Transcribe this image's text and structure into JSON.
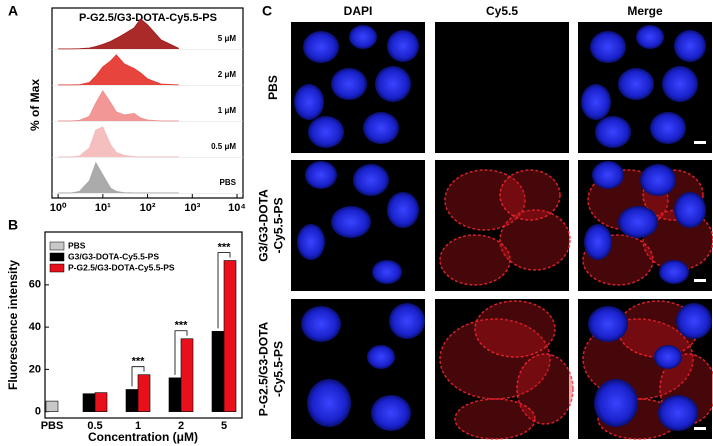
{
  "panel_labels": [
    "A",
    "B",
    "C"
  ],
  "chart_data": [
    {
      "type": "ridgeline",
      "title": "P-G2.5/G3-DOTA-Cy5.5-PS",
      "ylabel": "% of Max",
      "log_x": true,
      "xlim": [
        0.73,
        13600
      ],
      "xticks": [
        {
          "value": 1,
          "label": "10⁰"
        },
        {
          "value": 10,
          "label": "10¹"
        },
        {
          "value": 100,
          "label": "10²"
        },
        {
          "value": 1000,
          "label": "10³"
        },
        {
          "value": 10000,
          "label": "10⁴"
        }
      ],
      "ylim": [
        0,
        100
      ],
      "x": [
        1,
        2,
        3,
        5,
        7,
        10,
        15,
        20,
        30,
        50,
        70,
        100,
        200,
        500
      ],
      "series": [
        {
          "name": "PBS",
          "color": "#a6a6a6",
          "values": [
            0,
            0,
            5,
            40,
            100,
            60,
            15,
            5,
            1,
            0,
            0,
            0,
            0,
            0
          ]
        },
        {
          "name": "0.5 μM",
          "color": "#f6bcbc",
          "values": [
            0,
            0,
            3,
            30,
            90,
            100,
            40,
            15,
            5,
            1,
            0,
            0,
            0,
            0
          ]
        },
        {
          "name": "1 μM",
          "color": "#f29090",
          "values": [
            0,
            0,
            2,
            15,
            60,
            100,
            60,
            30,
            20,
            25,
            10,
            3,
            0,
            0
          ]
        },
        {
          "name": "2 μM",
          "color": "#e53a33",
          "values": [
            0,
            0,
            1,
            8,
            30,
            60,
            80,
            100,
            70,
            55,
            40,
            20,
            3,
            0
          ]
        },
        {
          "name": "5 μM",
          "color": "#a51d1d",
          "values": [
            0,
            0,
            1,
            3,
            8,
            15,
            25,
            35,
            50,
            70,
            100,
            80,
            30,
            2
          ]
        }
      ]
    },
    {
      "type": "bar",
      "xlabel": "Concentration (μM)",
      "ylabel": "Fluorescence intensity",
      "categories": [
        "PBS",
        "0.5",
        "1",
        "2",
        "5"
      ],
      "ylim": [
        -3,
        85
      ],
      "yticks": [
        0,
        20,
        40,
        60
      ],
      "legend": "upper-left",
      "series": [
        {
          "name": "PBS",
          "color": "#c8c8c8",
          "values": [
            5,
            null,
            null,
            null,
            null
          ]
        },
        {
          "name": "G3/G3-DOTA-Cy5.5-PS",
          "color": "#000000",
          "values": [
            null,
            8.5,
            10.5,
            16,
            38
          ]
        },
        {
          "name": "P-G2.5/G3-DOTA-Cy5.5-PS",
          "color": "#e8101a",
          "values": [
            null,
            9,
            17.5,
            34.5,
            71.5
          ]
        }
      ],
      "annotations": [
        "***",
        "***",
        "***"
      ]
    }
  ],
  "microscopy": {
    "columns": [
      "DAPI",
      "Cy5.5",
      "Merge"
    ],
    "rows": [
      [
        "PBS"
      ],
      [
        "G3/G3-DOTA",
        "-Cy5.5-PS"
      ],
      [
        "P-G2.5/G3-DOTA",
        "-Cy5.5-PS"
      ]
    ]
  }
}
